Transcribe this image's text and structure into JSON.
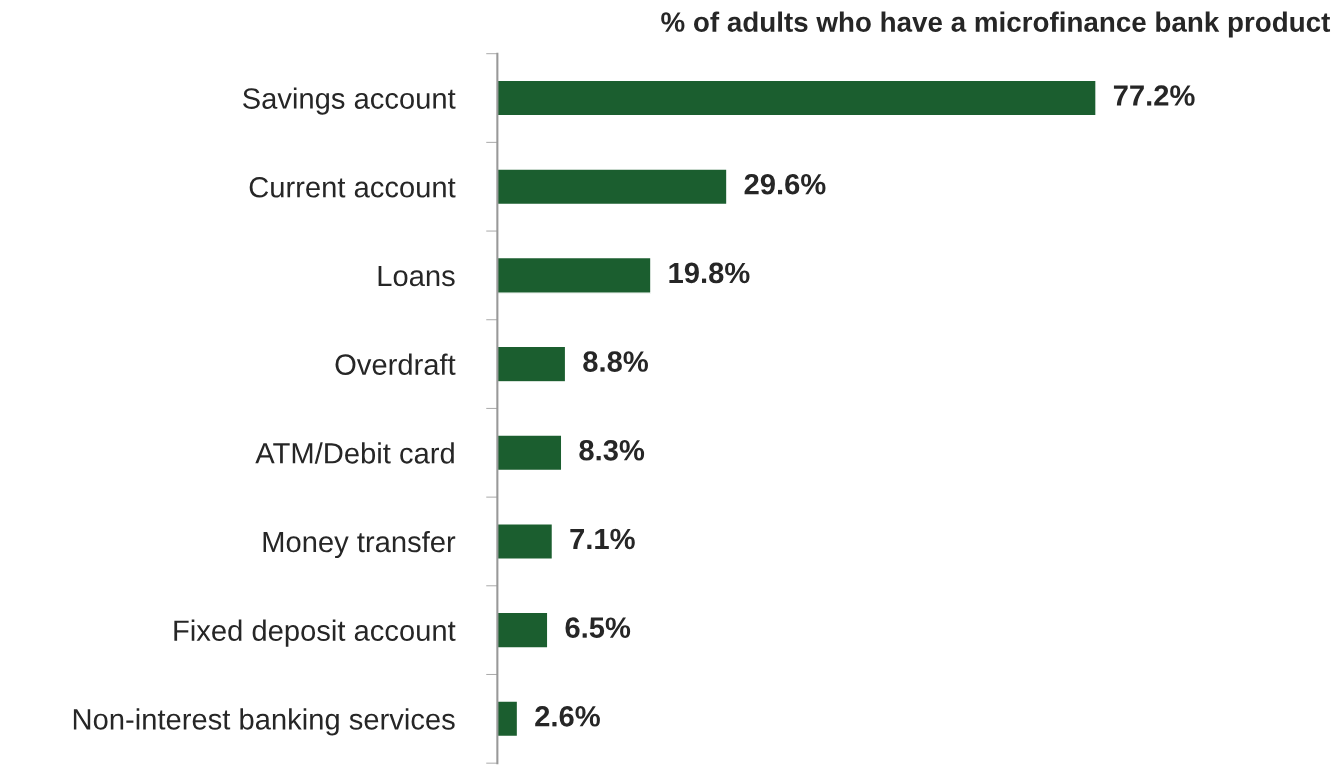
{
  "chart_data": {
    "type": "bar",
    "orientation": "horizontal",
    "title": "% of adults who have a microfinance bank product",
    "categories": [
      "Savings account",
      "Current account",
      "Loans",
      "Overdraft",
      "ATM/Debit card",
      "Money transfer",
      "Fixed deposit account",
      "Non-interest banking services"
    ],
    "values": [
      77.2,
      29.6,
      19.8,
      8.8,
      8.3,
      7.1,
      6.5,
      2.6
    ],
    "value_labels": [
      "77.2%",
      "29.6%",
      "19.8%",
      "8.8%",
      "8.3%",
      "7.1%",
      "6.5%",
      "2.6%"
    ],
    "color": "#1b5e2f",
    "grid": false,
    "legend": false
  }
}
